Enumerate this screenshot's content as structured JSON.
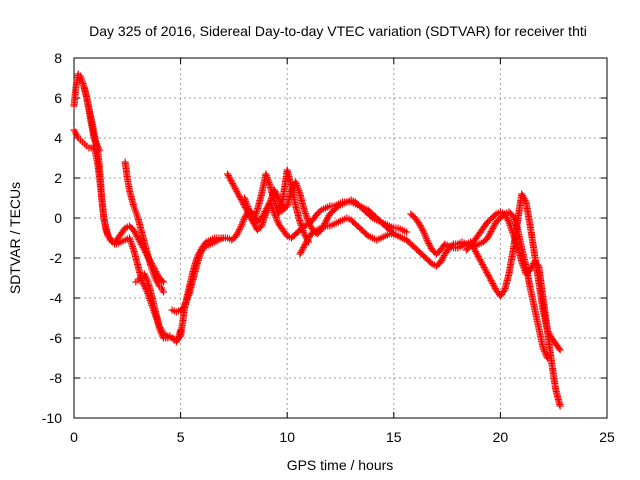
{
  "chart_data": {
    "type": "scatter",
    "title": "Day 325 of 2016, Sidereal Day-to-day VTEC variation (SDTVAR) for receiver thti",
    "xlabel": "GPS time / hours",
    "ylabel": "SDTVAR / TECUs",
    "xlim": [
      0,
      25
    ],
    "ylim": [
      -10,
      8
    ],
    "xticks": [
      0,
      5,
      10,
      15,
      20,
      25
    ],
    "yticks": [
      -10,
      -8,
      -6,
      -4,
      -2,
      0,
      2,
      4,
      6,
      8
    ],
    "xtick_labels": [
      "0",
      "5",
      "10",
      "15",
      "20",
      "25"
    ],
    "ytick_labels": [
      "-10",
      "-8",
      "-6",
      "-4",
      "-2",
      "0",
      "2",
      "4",
      "6",
      "8"
    ],
    "grid": true,
    "marker": "+",
    "color": "#ff0000",
    "series": [
      {
        "x": [
          0.0,
          0.1,
          0.2,
          0.3,
          0.4,
          0.5,
          0.6,
          0.7,
          0.8,
          0.9,
          1.0,
          1.1,
          1.2,
          1.3,
          1.4,
          1.5,
          1.6,
          1.7,
          1.8,
          1.9,
          2.0,
          2.2,
          2.4,
          2.6,
          2.8,
          3.0,
          3.2,
          3.4,
          3.6,
          3.8,
          4.0,
          4.2
        ],
        "y": [
          5.6,
          6.6,
          7.2,
          7.1,
          6.8,
          6.4,
          6.0,
          5.5,
          5.0,
          4.5,
          3.9,
          3.5,
          2.5,
          1.0,
          0.0,
          -0.5,
          -0.9,
          -1.0,
          -1.2,
          -1.3,
          -1.1,
          -0.8,
          -0.5,
          -0.4,
          -0.6,
          -1.0,
          -1.4,
          -1.8,
          -2.2,
          -2.6,
          -3.0,
          -3.2
        ]
      },
      {
        "x": [
          0.0,
          0.1,
          0.2,
          0.3,
          0.4,
          0.5,
          0.6,
          0.7,
          0.8,
          0.9,
          1.0,
          1.1,
          1.2,
          1.3,
          1.4,
          1.5,
          1.6,
          1.7,
          1.8,
          1.9,
          2.0,
          2.2,
          2.4,
          2.6,
          2.8,
          3.0,
          3.2,
          3.4,
          3.6,
          3.8,
          4.0,
          4.2,
          4.4,
          4.6,
          4.8,
          5.0,
          5.1,
          5.2,
          5.4,
          5.6,
          5.8,
          6.0,
          6.2,
          6.4,
          6.6,
          6.8,
          7.0,
          7.2,
          7.4,
          7.6,
          7.8,
          8.0,
          8.2,
          8.4,
          8.6,
          8.8,
          9.0,
          9.2,
          9.4,
          9.6,
          9.8,
          10.0,
          10.2,
          10.4,
          10.6,
          10.8,
          11.0,
          11.2,
          11.4,
          11.6,
          11.8,
          12.0,
          12.2,
          12.4,
          12.6,
          12.8,
          13.0,
          13.2,
          13.4,
          13.6,
          13.8,
          14.0,
          14.2,
          14.4,
          14.6,
          14.8,
          15.0,
          15.2,
          15.4,
          15.6,
          15.8,
          16.0,
          16.2,
          16.4,
          16.6,
          16.8,
          17.0,
          17.2,
          17.4,
          17.6,
          17.8,
          18.0,
          18.2,
          18.4,
          18.6,
          18.8,
          19.0,
          19.2,
          19.4,
          19.6,
          19.8,
          20.0,
          20.2,
          20.4,
          20.6,
          20.8,
          21.0,
          21.2,
          21.4,
          21.6,
          21.8,
          22.0,
          22.2
        ],
        "y": [
          4.4,
          4.2,
          4.0,
          3.9,
          3.8,
          3.7,
          3.6,
          3.5,
          3.5,
          3.6,
          3.3,
          2.8,
          2.0,
          1.0,
          0.0,
          -0.6,
          -0.9,
          -1.1,
          -1.2,
          -1.3,
          -1.3,
          -1.2,
          -1.1,
          -1.0,
          -1.6,
          -2.4,
          -3.2,
          -3.6,
          -4.2,
          -4.8,
          -5.4,
          -5.8,
          -5.9,
          -6.0,
          -6.1,
          -5.9,
          -5.2,
          -4.4,
          -3.5,
          -2.6,
          -1.9,
          -1.5,
          -1.2,
          -1.1,
          -1.0,
          -1.0,
          -1.0,
          -1.0,
          -1.1,
          -0.9,
          -0.5,
          0.0,
          0.4,
          0.2,
          -0.2,
          0.0,
          0.4,
          0.8,
          0.2,
          -0.3,
          -0.6,
          -0.9,
          -1.0,
          -0.8,
          -0.6,
          -0.4,
          -0.3,
          -0.1,
          0.2,
          0.4,
          0.5,
          0.6,
          0.6,
          0.7,
          0.8,
          0.8,
          0.8,
          0.7,
          0.6,
          0.5,
          0.4,
          0.2,
          0.0,
          -0.2,
          -0.4,
          -0.6,
          -0.8,
          -0.9,
          -1.0,
          -1.1,
          -1.3,
          -1.5,
          -1.7,
          -1.9,
          -2.1,
          -2.3,
          -2.4,
          -2.2,
          -1.8,
          -1.5,
          -1.3,
          -1.3,
          -1.2,
          -1.3,
          -1.4,
          -1.4,
          -1.3,
          -1.2,
          -1.0,
          -0.6,
          -0.2,
          0.0,
          0.2,
          0.3,
          0.1,
          -0.5,
          -1.5,
          -2.4,
          -3.5,
          -4.5,
          -5.5,
          -6.5,
          -7.0
        ]
      },
      {
        "x": [
          0.5,
          0.6,
          0.7,
          0.8,
          0.9,
          1.0,
          1.1,
          1.2
        ],
        "y": [
          6.5,
          6.0,
          5.4,
          4.8,
          4.2,
          3.8,
          3.6,
          3.4
        ]
      },
      {
        "x": [
          2.4,
          2.5,
          2.6,
          2.7,
          2.8,
          2.9,
          3.0,
          3.1,
          3.2,
          3.3,
          3.4,
          3.5,
          3.6,
          3.7,
          3.8,
          3.9,
          4.0,
          4.1,
          4.2
        ],
        "y": [
          2.8,
          2.0,
          1.4,
          1.0,
          0.6,
          0.3,
          0.0,
          -0.4,
          -0.8,
          -1.2,
          -1.6,
          -2.0,
          -2.4,
          -2.7,
          -3.0,
          -3.2,
          -3.4,
          -3.5,
          -3.7
        ]
      },
      {
        "x": [
          2.9,
          3.0,
          3.1,
          3.2,
          3.3,
          3.4,
          3.5,
          3.6,
          3.7,
          3.8,
          3.9,
          4.0,
          4.1,
          4.2,
          4.3,
          4.4,
          4.5,
          4.6,
          4.7,
          4.8,
          4.9,
          5.0
        ],
        "y": [
          -3.2,
          -3.1,
          -3.0,
          -2.9,
          -2.8,
          -3.0,
          -3.3,
          -3.7,
          -4.1,
          -4.6,
          -5.0,
          -5.5,
          -5.8,
          -6.0,
          -6.0,
          -6.0,
          -5.9,
          -6.0,
          -6.1,
          -6.2,
          -6.0,
          -5.6
        ]
      },
      {
        "x": [
          4.6,
          4.8,
          5.0,
          5.2,
          5.4,
          5.6,
          5.8,
          6.0,
          6.2,
          6.4,
          6.6,
          6.8,
          7.0
        ],
        "y": [
          -4.6,
          -4.7,
          -4.6,
          -4.4,
          -3.8,
          -3.0,
          -2.2,
          -1.6,
          -1.4,
          -1.3,
          -1.2,
          -1.1,
          -1.0
        ]
      },
      {
        "x": [
          7.2,
          7.4,
          7.6,
          7.8,
          8.0,
          8.2,
          8.4,
          8.6,
          8.8,
          9.0,
          9.2,
          9.4,
          9.6,
          9.8,
          10.0,
          10.2,
          10.4,
          10.6,
          10.8,
          11.0
        ],
        "y": [
          2.2,
          1.8,
          1.4,
          1.0,
          0.6,
          0.2,
          -0.2,
          0.4,
          1.2,
          2.2,
          1.6,
          0.8,
          0.2,
          1.0,
          2.4,
          1.6,
          0.6,
          -0.2,
          -0.8,
          -1.2
        ]
      },
      {
        "x": [
          8.0,
          8.2,
          8.4,
          8.6,
          8.8,
          9.0,
          9.2,
          9.4,
          9.6,
          9.8,
          10.0,
          10.2,
          10.4,
          10.6,
          10.8,
          11.0,
          11.2,
          11.4,
          11.6,
          11.8,
          12.0,
          12.2,
          12.4,
          12.6,
          12.8,
          13.0,
          13.2,
          13.4,
          13.6,
          13.8,
          14.0,
          14.2,
          14.4,
          14.6,
          14.8,
          15.0,
          15.2,
          15.4,
          15.6
        ],
        "y": [
          1.0,
          0.4,
          -0.2,
          -0.6,
          -0.4,
          0.2,
          0.8,
          1.4,
          1.0,
          0.4,
          0.6,
          1.4,
          1.8,
          1.2,
          0.4,
          -0.2,
          -0.6,
          -0.8,
          -0.6,
          -0.2,
          0.2,
          0.4,
          0.6,
          0.7,
          0.8,
          0.9,
          0.8,
          0.6,
          0.4,
          0.2,
          0.0,
          -0.1,
          -0.2,
          -0.3,
          -0.4,
          -0.5,
          -0.5,
          -0.6,
          -0.7
        ]
      },
      {
        "x": [
          10.6,
          10.8,
          11.0,
          11.2,
          11.4,
          11.6,
          11.8,
          12.0,
          12.2,
          12.4,
          12.6,
          12.8,
          13.0,
          13.2,
          13.4,
          13.6,
          13.8,
          14.0,
          14.2,
          14.4,
          14.6,
          14.8,
          15.0,
          15.2,
          15.4,
          15.6
        ],
        "y": [
          -1.8,
          -1.4,
          -1.0,
          -0.7,
          -0.6,
          -0.5,
          -0.4,
          -0.4,
          -0.3,
          -0.2,
          -0.1,
          0.0,
          -0.1,
          -0.3,
          -0.5,
          -0.7,
          -0.9,
          -1.0,
          -1.1,
          -1.0,
          -0.9,
          -0.8,
          -0.8,
          -0.9,
          -1.0,
          -1.1
        ]
      },
      {
        "x": [
          15.8,
          16.0,
          16.2,
          16.4,
          16.6,
          16.8,
          17.0,
          17.2,
          17.4,
          17.6,
          17.8,
          18.0,
          18.2,
          18.4,
          18.6,
          18.8,
          19.0,
          19.2,
          19.4,
          19.6,
          19.8,
          20.0,
          20.2,
          20.4,
          20.6,
          20.8,
          21.0,
          21.2,
          21.4,
          21.6,
          21.8,
          22.0,
          22.2,
          22.4,
          22.6,
          22.8
        ],
        "y": [
          0.2,
          0.0,
          -0.3,
          -0.7,
          -1.2,
          -1.6,
          -1.8,
          -1.6,
          -1.3,
          -1.4,
          -1.5,
          -1.5,
          -1.4,
          -1.3,
          -1.2,
          -1.6,
          -2.0,
          -2.4,
          -2.8,
          -3.2,
          -3.6,
          -3.9,
          -3.6,
          -2.8,
          -1.6,
          -0.2,
          1.2,
          0.8,
          -0.4,
          -1.8,
          -3.2,
          -4.6,
          -5.6,
          -6.0,
          -6.3,
          -6.6
        ]
      },
      {
        "x": [
          18.4,
          18.6,
          18.8,
          19.0,
          19.2,
          19.4,
          19.6,
          19.8,
          20.0,
          20.2,
          20.4,
          20.6,
          20.8,
          21.0,
          21.2,
          21.4,
          21.6,
          21.8,
          22.0,
          22.2,
          22.4,
          22.6,
          22.8
        ],
        "y": [
          -1.6,
          -1.4,
          -1.1,
          -0.8,
          -0.5,
          -0.2,
          0.0,
          0.2,
          0.3,
          0.2,
          -0.2,
          -0.8,
          -1.4,
          -2.2,
          -2.8,
          -2.6,
          -2.2,
          -2.4,
          -4.0,
          -5.6,
          -7.2,
          -8.6,
          -9.4
        ]
      }
    ]
  }
}
